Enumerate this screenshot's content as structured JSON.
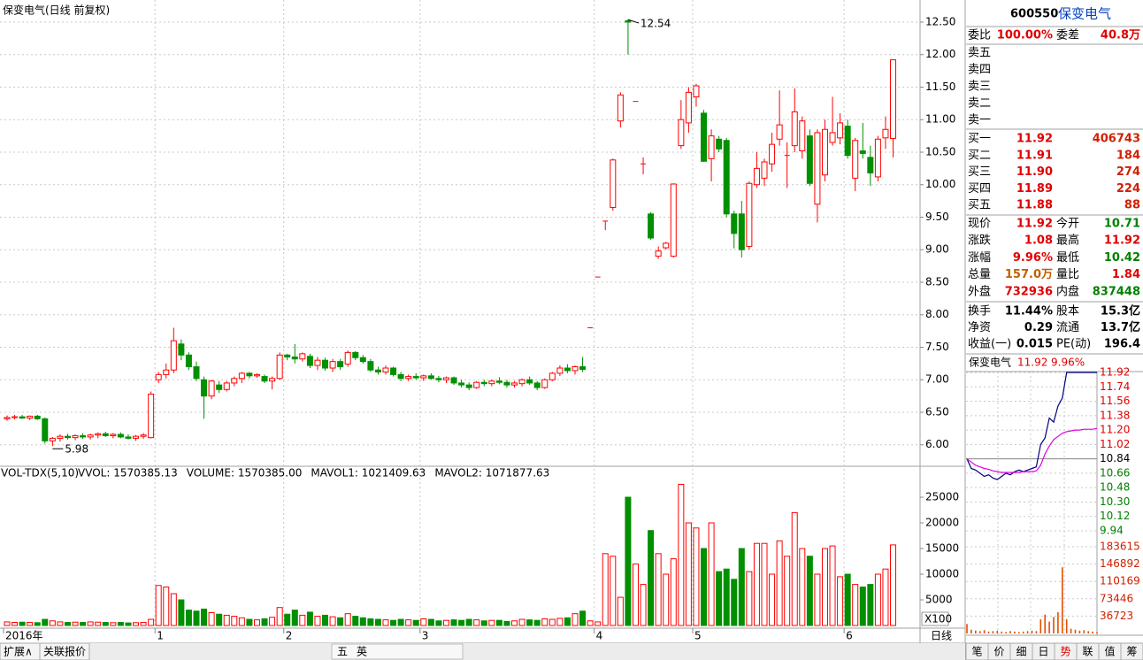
{
  "window": {
    "left_buttons": [
      "扩展∧",
      "关联报价"
    ],
    "tools": [
      "五",
      "英"
    ],
    "tabs": [
      "笔",
      "价",
      "细",
      "日",
      "势",
      "联",
      "值",
      "筹"
    ]
  },
  "quote": {
    "code": "600550",
    "name": "保变电气",
    "ratio": [
      "委比",
      "100.00%",
      "委差",
      "40.8万"
    ],
    "sell": [
      "卖五",
      "卖四",
      "卖三",
      "卖二",
      "卖一"
    ],
    "buy": [
      [
        "买一",
        "11.92",
        "406743"
      ],
      [
        "买二",
        "11.91",
        "184"
      ],
      [
        "买三",
        "11.90",
        "274"
      ],
      [
        "买四",
        "11.89",
        "224"
      ],
      [
        "买五",
        "11.88",
        "88"
      ]
    ],
    "stats": [
      [
        "现价",
        "11.92",
        "今开",
        "10.71"
      ],
      [
        "涨跌",
        "1.08",
        "最高",
        "11.92"
      ],
      [
        "涨幅",
        "9.96%",
        "最低",
        "10.42"
      ],
      [
        "总量",
        "157.0万",
        "量比",
        "1.84"
      ],
      [
        "外盘",
        "732936",
        "内盘",
        "837448"
      ]
    ],
    "fin": [
      [
        "换手",
        "11.44%",
        "股本",
        "15.3亿"
      ],
      [
        "净资",
        "0.29",
        "流通",
        "13.7亿"
      ],
      [
        "收益(一)",
        "0.015",
        "PE(动)",
        "196.4"
      ]
    ]
  },
  "chart_data": [
    {
      "type": "candlestick",
      "title": "保变电气(日线 前复权)",
      "period_label": "日线",
      "max_label": 12.54,
      "min_label": 5.98,
      "up_color": "#ff0000",
      "down_color": "#009000",
      "grid": true,
      "ylim": [
        5.67,
        12.84
      ],
      "yticks": [
        {
          "value": 12.5,
          "label": "12.50"
        },
        {
          "value": 12,
          "label": "12.00"
        },
        {
          "value": 11.5,
          "label": "11.50"
        },
        {
          "value": 11,
          "label": "11.00"
        },
        {
          "value": 10.5,
          "label": "10.50"
        },
        {
          "value": 10,
          "label": "10.00"
        },
        {
          "value": 9.5,
          "label": "9.50"
        },
        {
          "value": 9,
          "label": "9.00"
        },
        {
          "value": 8.5,
          "label": "8.50"
        },
        {
          "value": 8,
          "label": "8.00"
        },
        {
          "value": 7.5,
          "label": "7.50"
        },
        {
          "value": 7,
          "label": "7.00"
        },
        {
          "value": 6.5,
          "label": "6.50"
        },
        {
          "value": 6,
          "label": "6.00"
        }
      ],
      "categories": [
        "2016年",
        null,
        null,
        null,
        null,
        null,
        null,
        null,
        null,
        null,
        null,
        null,
        null,
        null,
        null,
        null,
        null,
        null,
        null,
        null,
        "1",
        null,
        null,
        null,
        null,
        null,
        null,
        null,
        null,
        null,
        null,
        null,
        null,
        null,
        null,
        null,
        null,
        "2",
        null,
        null,
        null,
        null,
        null,
        null,
        null,
        null,
        null,
        null,
        null,
        null,
        null,
        null,
        null,
        null,
        null,
        "3",
        null,
        null,
        null,
        null,
        null,
        null,
        null,
        null,
        null,
        null,
        null,
        null,
        null,
        null,
        null,
        null,
        null,
        null,
        null,
        null,
        null,
        null,
        "4",
        null,
        null,
        null,
        null,
        null,
        null,
        null,
        null,
        null,
        null,
        null,
        null,
        "5",
        null,
        null,
        null,
        null,
        null,
        null,
        null,
        null,
        null,
        null,
        null,
        null,
        null,
        null,
        null,
        null,
        null,
        null,
        null,
        "6",
        null,
        null,
        null,
        null,
        null,
        null
      ],
      "ohlc": [
        [
          6.4,
          6.45,
          6.37,
          6.42
        ],
        [
          6.42,
          6.46,
          6.39,
          6.43
        ],
        [
          6.43,
          6.46,
          6.4,
          6.41
        ],
        [
          6.41,
          6.45,
          6.38,
          6.44
        ],
        [
          6.44,
          6.46,
          6.38,
          6.4
        ],
        [
          6.4,
          6.42,
          6.02,
          6.06
        ],
        [
          6.06,
          6.12,
          5.98,
          6.1
        ],
        [
          6.1,
          6.16,
          6.05,
          6.13
        ],
        [
          6.13,
          6.17,
          6.08,
          6.11
        ],
        [
          6.11,
          6.16,
          6.07,
          6.14
        ],
        [
          6.14,
          6.18,
          6.09,
          6.12
        ],
        [
          6.12,
          6.17,
          6.08,
          6.15
        ],
        [
          6.15,
          6.19,
          6.1,
          6.17
        ],
        [
          6.17,
          6.2,
          6.12,
          6.14
        ],
        [
          6.14,
          6.18,
          6.1,
          6.16
        ],
        [
          6.16,
          6.19,
          6.1,
          6.12
        ],
        [
          6.12,
          6.16,
          6.08,
          6.1
        ],
        [
          6.1,
          6.15,
          6.06,
          6.13
        ],
        [
          6.13,
          6.18,
          6.09,
          6.15
        ],
        [
          6.11,
          6.82,
          6.1,
          6.78
        ],
        [
          7.0,
          7.12,
          6.95,
          7.08
        ],
        [
          7.08,
          7.25,
          7.02,
          7.15
        ],
        [
          7.15,
          7.8,
          7.1,
          7.6
        ],
        [
          7.55,
          7.62,
          7.3,
          7.38
        ],
        [
          7.38,
          7.42,
          7.15,
          7.2
        ],
        [
          7.2,
          7.28,
          6.98,
          7.02
        ],
        [
          7.0,
          7.05,
          6.4,
          6.75
        ],
        [
          6.75,
          7.0,
          6.7,
          6.98
        ],
        [
          6.92,
          6.98,
          6.8,
          6.85
        ],
        [
          6.85,
          6.98,
          6.82,
          6.95
        ],
        [
          6.95,
          7.05,
          6.9,
          7.02
        ],
        [
          7.02,
          7.12,
          6.95,
          7.1
        ],
        [
          7.1,
          7.12,
          7.02,
          7.06
        ],
        [
          7.06,
          7.1,
          7.03,
          7.08
        ],
        [
          7.05,
          7.08,
          6.95,
          6.98
        ],
        [
          6.98,
          7.05,
          6.85,
          7.02
        ],
        [
          7.02,
          7.42,
          7.0,
          7.38
        ],
        [
          7.38,
          7.4,
          7.3,
          7.35
        ],
        [
          7.35,
          7.55,
          7.25,
          7.32
        ],
        [
          7.32,
          7.42,
          7.28,
          7.4
        ],
        [
          7.36,
          7.4,
          7.18,
          7.22
        ],
        [
          7.22,
          7.35,
          7.15,
          7.3
        ],
        [
          7.3,
          7.34,
          7.14,
          7.18
        ],
        [
          7.18,
          7.32,
          7.12,
          7.28
        ],
        [
          7.28,
          7.32,
          7.15,
          7.2
        ],
        [
          7.24,
          7.45,
          7.2,
          7.42
        ],
        [
          7.42,
          7.44,
          7.3,
          7.34
        ],
        [
          7.34,
          7.38,
          7.25,
          7.28
        ],
        [
          7.28,
          7.32,
          7.12,
          7.15
        ],
        [
          7.15,
          7.2,
          7.08,
          7.12
        ],
        [
          7.12,
          7.22,
          7.08,
          7.18
        ],
        [
          7.18,
          7.2,
          7.05,
          7.08
        ],
        [
          7.08,
          7.12,
          6.98,
          7.02
        ],
        [
          7.02,
          7.08,
          6.98,
          7.05
        ],
        [
          7.05,
          7.1,
          7.0,
          7.03
        ],
        [
          7.03,
          7.08,
          6.98,
          7.06
        ],
        [
          7.06,
          7.1,
          7.0,
          7.02
        ],
        [
          7.02,
          7.06,
          6.96,
          7.0
        ],
        [
          7.0,
          7.05,
          6.95,
          7.03
        ],
        [
          7.03,
          7.05,
          6.92,
          6.95
        ],
        [
          6.95,
          7.0,
          6.88,
          6.92
        ],
        [
          6.92,
          6.96,
          6.84,
          6.88
        ],
        [
          6.88,
          6.98,
          6.86,
          6.96
        ],
        [
          6.96,
          7.0,
          6.9,
          6.94
        ],
        [
          6.94,
          7.0,
          6.9,
          6.98
        ],
        [
          6.98,
          7.04,
          6.93,
          6.96
        ],
        [
          6.96,
          7.0,
          6.88,
          6.92
        ],
        [
          6.92,
          6.98,
          6.88,
          6.95
        ],
        [
          6.94,
          7.02,
          6.9,
          7.0
        ],
        [
          7.0,
          7.05,
          6.92,
          6.95
        ],
        [
          6.95,
          6.98,
          6.84,
          6.88
        ],
        [
          6.88,
          7.02,
          6.86,
          7.0
        ],
        [
          7.0,
          7.12,
          6.98,
          7.1
        ],
        [
          7.1,
          7.22,
          7.06,
          7.18
        ],
        [
          7.18,
          7.24,
          7.1,
          7.14
        ],
        [
          7.14,
          7.22,
          7.08,
          7.2
        ],
        [
          7.2,
          7.35,
          7.12,
          7.16
        ],
        [
          7.8,
          7.8,
          7.8,
          7.8
        ],
        [
          8.58,
          8.58,
          8.58,
          8.58
        ],
        [
          9.44,
          9.44,
          9.3,
          9.44
        ],
        [
          9.65,
          10.4,
          9.6,
          10.38
        ],
        [
          10.98,
          11.42,
          10.88,
          11.38
        ],
        [
          12.52,
          12.54,
          12.0,
          12.5
        ],
        [
          11.28,
          11.28,
          11.28,
          11.28
        ],
        [
          10.32,
          10.42,
          10.16,
          10.32
        ],
        [
          9.55,
          9.58,
          9.15,
          9.18
        ],
        [
          8.9,
          9.05,
          8.86,
          8.98
        ],
        [
          9.03,
          9.12,
          9.0,
          9.1
        ],
        [
          8.9,
          10.02,
          8.88,
          10.01
        ],
        [
          10.6,
          11.3,
          10.55,
          11.0
        ],
        [
          10.95,
          11.5,
          10.8,
          11.42
        ],
        [
          11.35,
          11.55,
          11.2,
          11.52
        ],
        [
          11.1,
          11.15,
          10.35,
          10.36
        ],
        [
          10.4,
          10.85,
          10.05,
          10.75
        ],
        [
          10.7,
          10.75,
          10.5,
          10.55
        ],
        [
          10.68,
          10.72,
          9.5,
          9.55
        ],
        [
          9.55,
          9.6,
          9.02,
          9.25
        ],
        [
          9.55,
          9.75,
          8.88,
          9.0
        ],
        [
          9.05,
          10.05,
          9.0,
          10.02
        ],
        [
          10.0,
          10.5,
          9.95,
          10.25
        ],
        [
          10.1,
          10.4,
          9.98,
          10.35
        ],
        [
          10.32,
          10.8,
          10.2,
          10.62
        ],
        [
          10.7,
          11.45,
          10.6,
          10.92
        ],
        [
          10.45,
          10.65,
          9.95,
          10.45
        ],
        [
          10.6,
          11.48,
          10.5,
          11.12
        ],
        [
          10.52,
          11.05,
          10.4,
          10.98
        ],
        [
          10.75,
          10.85,
          9.98,
          10.02
        ],
        [
          9.7,
          10.85,
          9.42,
          10.8
        ],
        [
          10.15,
          11.0,
          10.05,
          10.85
        ],
        [
          10.65,
          11.35,
          10.6,
          10.8
        ],
        [
          10.72,
          11.1,
          10.62,
          10.95
        ],
        [
          10.9,
          11.0,
          10.4,
          10.45
        ],
        [
          10.1,
          10.72,
          9.9,
          10.68
        ],
        [
          10.52,
          10.95,
          10.4,
          10.48
        ],
        [
          10.42,
          10.6,
          9.98,
          10.18
        ],
        [
          10.12,
          10.75,
          10.05,
          10.7
        ],
        [
          10.72,
          11.05,
          10.55,
          10.85
        ],
        [
          10.71,
          11.92,
          10.42,
          11.92
        ]
      ]
    },
    {
      "type": "bar",
      "title": "VOL-TDX(5,10)",
      "unit_label": "X100",
      "indicators": [
        {
          "text": "VVOL: 1570385.13",
          "color": "#000000"
        },
        {
          "text": "VOLUME: 1570385.00",
          "color": "#c000c0"
        },
        {
          "text": "MAVOL1: 1021409.63",
          "color": "#c000c0"
        },
        {
          "text": "MAVOL2: 1071877.63",
          "color": "#808080"
        }
      ],
      "ylim": [
        0,
        30000
      ],
      "yticks": [
        25000,
        20000,
        15000,
        10000,
        5000
      ],
      "values": [
        700,
        600,
        650,
        600,
        550,
        1200,
        900,
        700,
        600,
        650,
        600,
        700,
        650,
        600,
        550,
        600,
        500,
        550,
        600,
        1200,
        7800,
        7500,
        6200,
        5000,
        3000,
        2800,
        3200,
        2500,
        2200,
        2000,
        1800,
        1500,
        1200,
        1100,
        1300,
        1600,
        3500,
        2200,
        3000,
        2000,
        2600,
        1800,
        2000,
        1700,
        1500,
        2300,
        1800,
        1500,
        1300,
        1200,
        1100,
        1000,
        1200,
        1100,
        1000,
        1300,
        1200,
        900,
        1000,
        1100,
        1000,
        1200,
        1100,
        900,
        1000,
        1000,
        800,
        900,
        1200,
        1100,
        1000,
        1300,
        1200,
        1400,
        1500,
        2300,
        2800,
        900,
        700,
        14000,
        13500,
        5500,
        25000,
        12000,
        8000,
        18500,
        14000,
        10000,
        13000,
        27500,
        20000,
        19000,
        15000,
        20000,
        10500,
        11000,
        9000,
        15000,
        10500,
        16000,
        16000,
        10000,
        16500,
        13500,
        22000,
        15000,
        13500,
        10000,
        15000,
        15500,
        9500,
        10000,
        8000,
        7500,
        8000,
        10000,
        11000,
        15704
      ]
    },
    {
      "type": "line",
      "name": "保变电气",
      "price_label": "11.92",
      "change_label": "9.96%",
      "prev_close": 10.84,
      "ylim": [
        9.94,
        11.92
      ],
      "yticks": [
        11.92,
        11.74,
        11.56,
        11.38,
        {
          "value": 11.2,
          "label": "11.20"
        },
        11.02,
        10.84,
        10.66,
        10.48,
        {
          "value": 10.3,
          "label": "10.30"
        },
        10.12,
        9.94
      ],
      "series": [
        {
          "color": "#000080",
          "values": [
            10.84,
            10.72,
            10.7,
            10.66,
            10.62,
            10.64,
            10.6,
            10.58,
            10.62,
            10.66,
            10.64,
            10.68,
            10.7,
            10.68,
            10.7,
            10.72,
            10.74,
            11.02,
            11.1,
            11.35,
            11.3,
            11.5,
            11.6,
            11.92,
            11.92,
            11.92,
            11.92,
            11.92,
            11.92,
            11.92,
            11.92
          ]
        },
        {
          "color": "#e000e0",
          "values": [
            10.84,
            10.8,
            10.76,
            10.74,
            10.72,
            10.71,
            10.69,
            10.68,
            10.67,
            10.67,
            10.67,
            10.67,
            10.67,
            10.68,
            10.68,
            10.68,
            10.69,
            10.76,
            10.9,
            11.0,
            11.08,
            11.12,
            11.16,
            11.18,
            11.19,
            11.2,
            11.2,
            11.21,
            11.21,
            11.21,
            11.22
          ]
        }
      ]
    },
    {
      "type": "bar",
      "color": "#e05000",
      "ylim": [
        0,
        183615
      ],
      "yticks": [
        183615,
        146892,
        110169,
        73446,
        36723
      ],
      "values": [
        20000,
        8000,
        6000,
        5000,
        7000,
        4000,
        5000,
        6000,
        4000,
        3000,
        5000,
        4000,
        3000,
        4000,
        5000,
        6000,
        5000,
        30000,
        40000,
        25000,
        35000,
        45000,
        140000,
        30000,
        10000,
        8000,
        6000,
        7000,
        5000,
        4000,
        3000
      ]
    }
  ]
}
